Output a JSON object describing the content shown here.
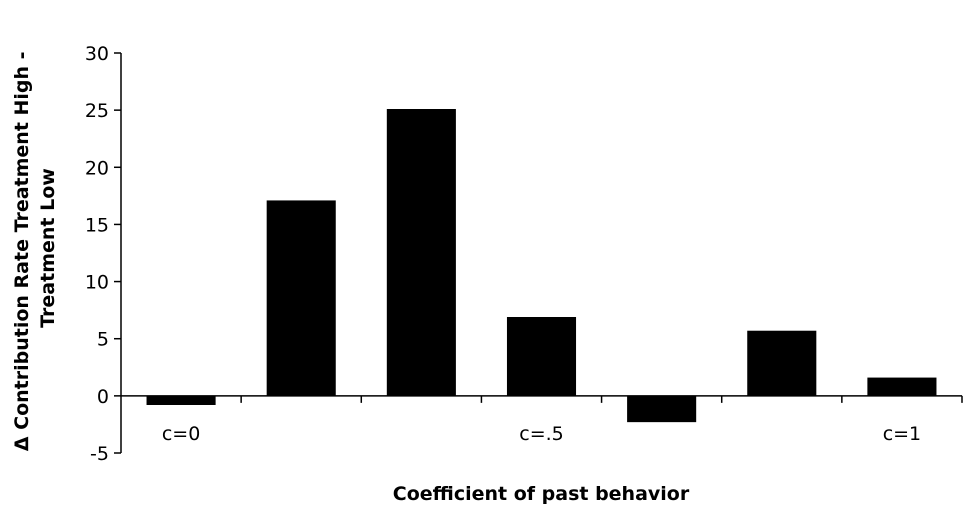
{
  "chart_data": {
    "type": "bar",
    "categories": [
      "c=0",
      "",
      "",
      "c=.5",
      "",
      "",
      "c=1"
    ],
    "values": [
      -0.8,
      17.1,
      25.1,
      6.9,
      -2.3,
      5.7,
      1.6
    ],
    "xlabel": "Coefficient of past behavior",
    "ylabel_lines": [
      "Δ Contribution Rate Treatment High -",
      "Treatment Low"
    ],
    "ylim": [
      -5,
      30
    ],
    "yticks": [
      -5,
      0,
      5,
      10,
      15,
      20,
      25,
      30
    ],
    "bar_color": "#000000",
    "grid": false,
    "legend": "none"
  }
}
